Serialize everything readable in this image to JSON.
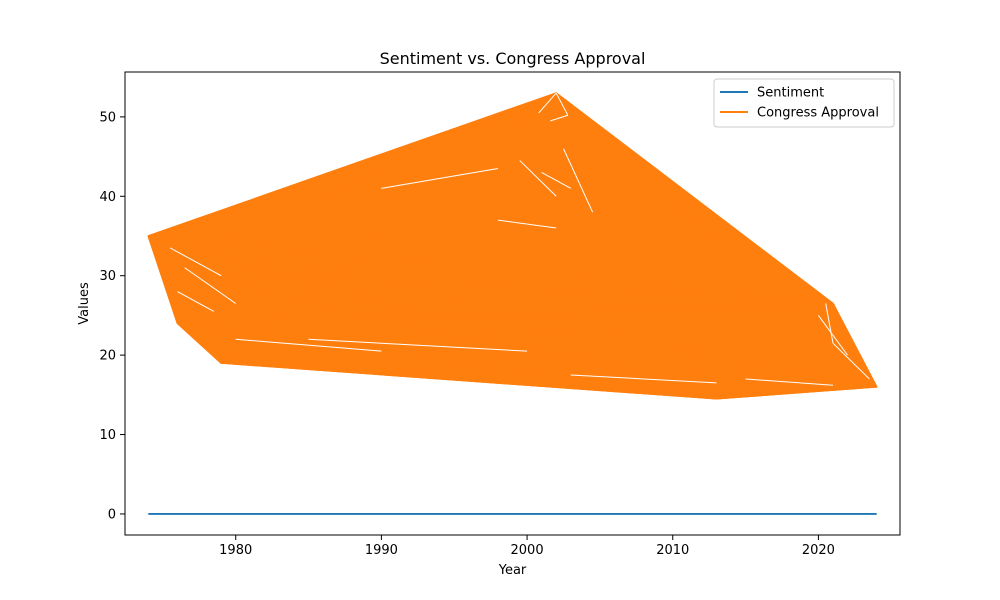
{
  "chart_data": {
    "type": "line",
    "title": "Sentiment vs. Congress Approval",
    "xlabel": "Year",
    "ylabel": "Values",
    "xlim": [
      1972.4,
      2025.6
    ],
    "ylim": [
      -2.65,
      55.65
    ],
    "xticks": [
      1980,
      1990,
      2000,
      2010,
      2020
    ],
    "yticks": [
      0,
      10,
      20,
      30,
      40,
      50
    ],
    "grid": false,
    "legend_position": "upper-right",
    "series": [
      {
        "name": "Sentiment",
        "color": "#1f77b4",
        "x": [
          1974,
          2024
        ],
        "y": [
          0,
          0
        ]
      },
      {
        "name": "Congress Approval",
        "color": "#ff7f0e",
        "x": [
          1974,
          1975,
          1976,
          1979,
          2002,
          2013,
          2021,
          2024
        ],
        "y": [
          35,
          31,
          24,
          19,
          53,
          14.5,
          26.5,
          16
        ]
      }
    ]
  }
}
